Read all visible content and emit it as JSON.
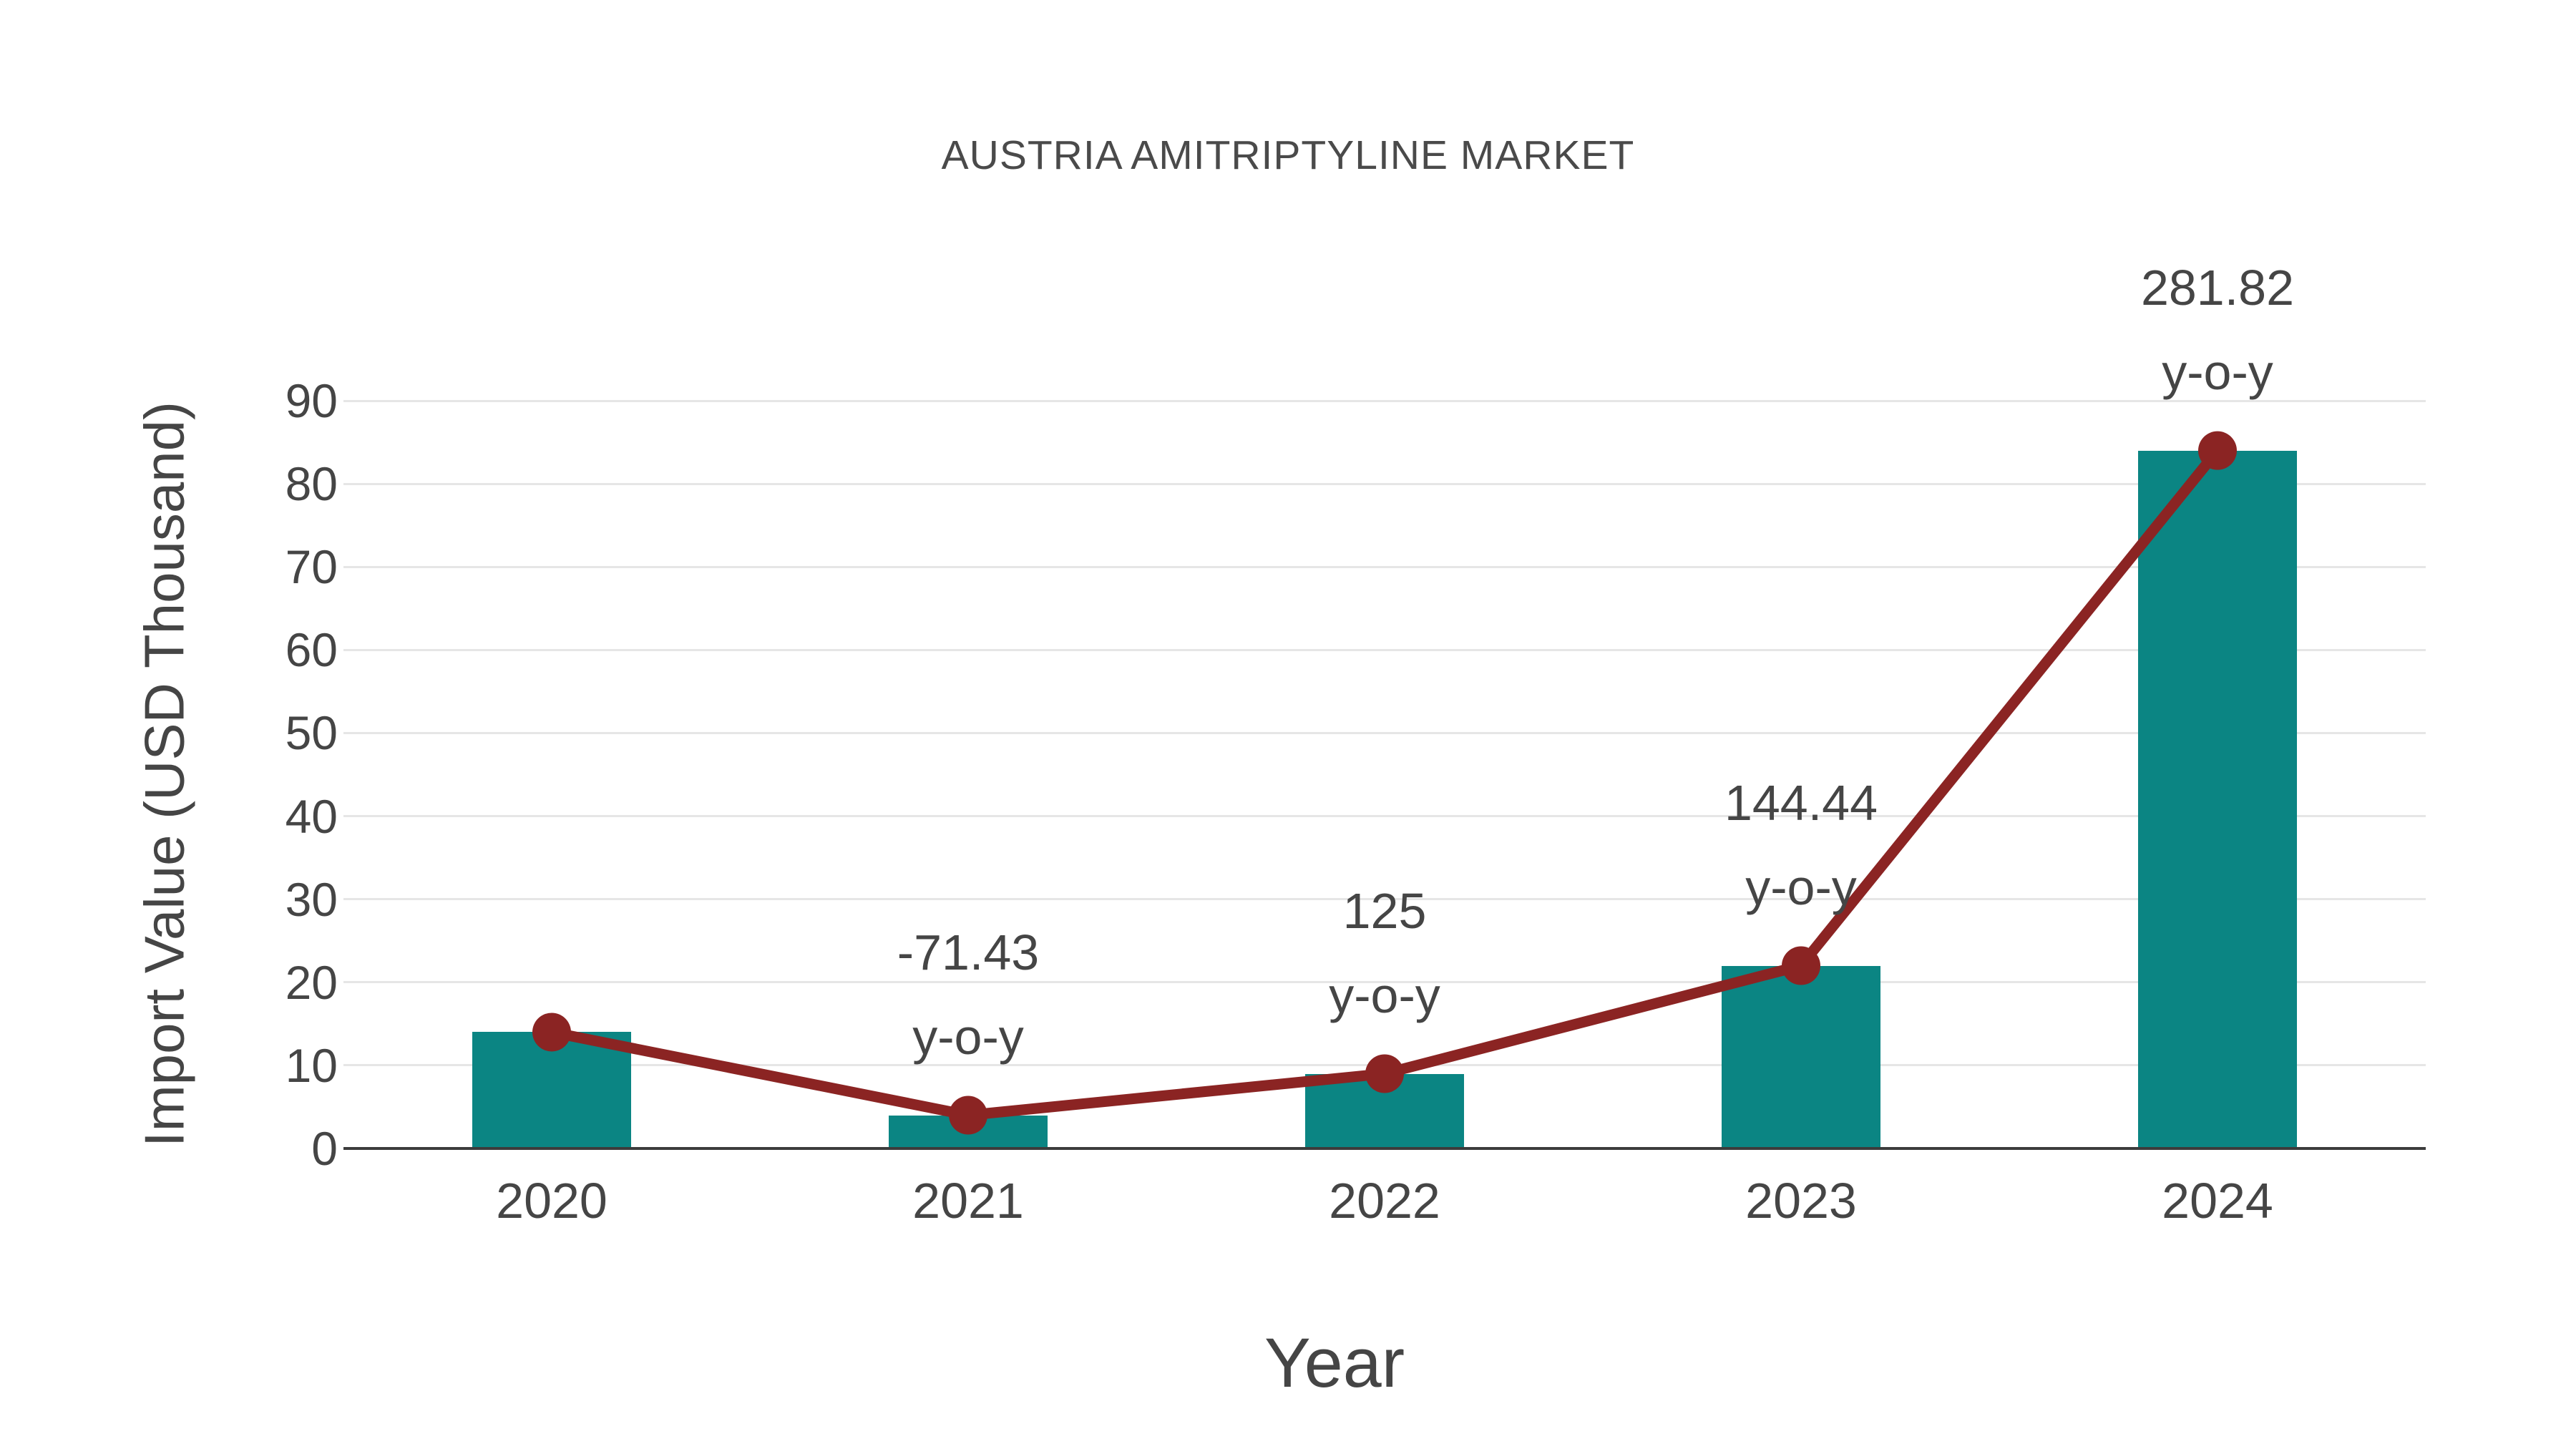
{
  "chart_data": {
    "type": "bar",
    "title": "AUSTRIA AMITRIPTYLINE MARKET",
    "xlabel": "Year",
    "ylabel": "Import Value (USD Thousand)",
    "categories": [
      "2020",
      "2021",
      "2022",
      "2023",
      "2024"
    ],
    "series": [
      {
        "name": "import-value-bars",
        "type": "bar",
        "values": [
          14,
          4,
          9,
          22,
          84
        ],
        "color": "#0b8583"
      },
      {
        "name": "import-value-trend-line",
        "type": "line",
        "values": [
          14,
          4,
          9,
          22,
          84
        ],
        "color": "#8b2423"
      }
    ],
    "annotations": [
      {
        "category": "2021",
        "value_label": "-71.43",
        "unit_label": "y-o-y"
      },
      {
        "category": "2022",
        "value_label": "125",
        "unit_label": "y-o-y"
      },
      {
        "category": "2023",
        "value_label": "144.44",
        "unit_label": "y-o-y"
      },
      {
        "category": "2024",
        "value_label": "281.82",
        "unit_label": "y-o-y"
      }
    ],
    "ylim": [
      0,
      90
    ],
    "ytick_labels": [
      "0",
      "10",
      "20",
      "30",
      "40",
      "50",
      "60",
      "70",
      "80",
      "90"
    ],
    "grid": true,
    "legend": "none",
    "colors": {
      "bar": "#0b8583",
      "line": "#8b2423",
      "text": "#454545",
      "title": "#4a4a4a",
      "grid": "#e6e6e6",
      "axis": "#3c3c3c",
      "background": "#ffffff"
    }
  }
}
